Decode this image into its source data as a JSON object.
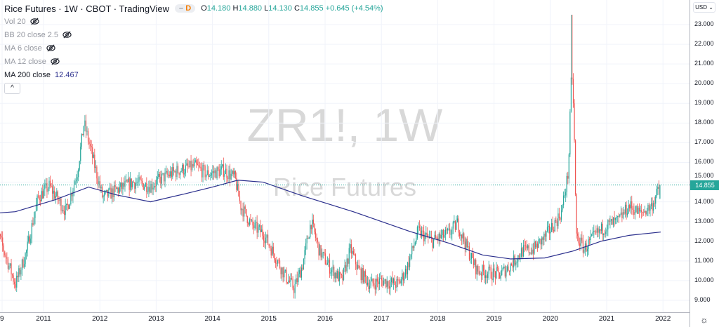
{
  "header": {
    "symbol_title": "Rice Futures · 1W · CBOT · TradingView",
    "badge_dash": "–",
    "badge": "D",
    "open_label": "O",
    "open": "14.180",
    "high_label": "H",
    "high": "14.880",
    "low_label": "L",
    "low": "14.130",
    "close_label": "C",
    "close": "14.855",
    "change": "+0.645 (+4.54%)"
  },
  "indicators": [
    {
      "label": "Vol 20",
      "hidden": true
    },
    {
      "label": "BB 20 close 2.5",
      "hidden": true
    },
    {
      "label": "MA 6 close",
      "hidden": true
    },
    {
      "label": "MA 12 close",
      "hidden": true
    },
    {
      "label": "MA 200 close",
      "value": "12.467",
      "hidden": false
    }
  ],
  "collapse_icon": "^",
  "watermark": {
    "line1": "ZR1!, 1W",
    "line2": "Rice Futures"
  },
  "currency": "USD ⌄",
  "colors": {
    "up": "#26a69a",
    "down": "#ef5350",
    "ma": "#2a2e8c",
    "grid": "#f0f3fa"
  },
  "chart_data": {
    "type": "candlestick",
    "title": "Rice Futures · 1W · CBOT",
    "ylim": [
      8.6,
      23.9
    ],
    "yticks": [
      "9.000",
      "10.000",
      "11.000",
      "12.000",
      "13.000",
      "14.000",
      "15.000",
      "16.000",
      "17.000",
      "18.000",
      "19.000",
      "20.000",
      "21.000",
      "22.000",
      "23.000"
    ],
    "xticks": [
      "9",
      "2011",
      "2012",
      "2013",
      "2014",
      "2015",
      "2016",
      "2017",
      "2018",
      "2019",
      "2020",
      "2021",
      "2022"
    ],
    "last_price": "14.855",
    "price_anchors": [
      [
        2010.1,
        13.2
      ],
      [
        2010.3,
        11.5
      ],
      [
        2010.5,
        9.8
      ],
      [
        2010.7,
        11.5
      ],
      [
        2010.9,
        14.2
      ],
      [
        2011.1,
        14.8
      ],
      [
        2011.4,
        13.5
      ],
      [
        2011.6,
        15.5
      ],
      [
        2011.72,
        18.0
      ],
      [
        2011.85,
        16.5
      ],
      [
        2012.05,
        14.2
      ],
      [
        2012.3,
        14.6
      ],
      [
        2012.6,
        15.0
      ],
      [
        2012.9,
        14.8
      ],
      [
        2013.1,
        15.2
      ],
      [
        2013.4,
        15.6
      ],
      [
        2013.7,
        15.8
      ],
      [
        2013.9,
        15.4
      ],
      [
        2014.2,
        15.6
      ],
      [
        2014.4,
        15.2
      ],
      [
        2014.5,
        13.8
      ],
      [
        2014.7,
        12.8
      ],
      [
        2014.9,
        12.4
      ],
      [
        2015.1,
        11.3
      ],
      [
        2015.3,
        10.2
      ],
      [
        2015.45,
        9.6
      ],
      [
        2015.6,
        10.8
      ],
      [
        2015.75,
        13.0
      ],
      [
        2015.9,
        11.5
      ],
      [
        2016.1,
        10.6
      ],
      [
        2016.3,
        10.0
      ],
      [
        2016.45,
        11.6
      ],
      [
        2016.6,
        10.5
      ],
      [
        2016.8,
        9.8
      ],
      [
        2017.0,
        10.0
      ],
      [
        2017.3,
        9.8
      ],
      [
        2017.45,
        10.6
      ],
      [
        2017.65,
        12.5
      ],
      [
        2017.9,
        12.0
      ],
      [
        2018.2,
        12.4
      ],
      [
        2018.35,
        12.9
      ],
      [
        2018.5,
        11.8
      ],
      [
        2018.7,
        10.5
      ],
      [
        2018.9,
        10.4
      ],
      [
        2019.1,
        10.3
      ],
      [
        2019.3,
        10.8
      ],
      [
        2019.5,
        11.5
      ],
      [
        2019.7,
        11.6
      ],
      [
        2019.9,
        12.2
      ],
      [
        2020.1,
        13.0
      ],
      [
        2020.2,
        13.5
      ],
      [
        2020.32,
        15.5
      ],
      [
        2020.38,
        21.0
      ],
      [
        2020.42,
        18.0
      ],
      [
        2020.46,
        12.3
      ],
      [
        2020.6,
        11.6
      ],
      [
        2020.8,
        12.3
      ],
      [
        2021.0,
        12.8
      ],
      [
        2021.2,
        13.0
      ],
      [
        2021.4,
        13.8
      ],
      [
        2021.6,
        13.4
      ],
      [
        2021.8,
        13.8
      ],
      [
        2021.96,
        14.855
      ]
    ],
    "spike_highs": [
      [
        2020.38,
        23.5
      ]
    ],
    "ma200": {
      "name": "MA 200 close",
      "points": [
        [
          2009.8,
          13.35
        ],
        [
          2010.5,
          13.5
        ],
        [
          2011.2,
          14.1
        ],
        [
          2011.8,
          14.75
        ],
        [
          2012.3,
          14.35
        ],
        [
          2012.9,
          14.0
        ],
        [
          2013.5,
          14.4
        ],
        [
          2014.0,
          14.75
        ],
        [
          2014.45,
          15.1
        ],
        [
          2014.9,
          15.0
        ],
        [
          2015.6,
          14.3
        ],
        [
          2016.5,
          13.5
        ],
        [
          2017.5,
          12.5
        ],
        [
          2018.2,
          11.9
        ],
        [
          2018.8,
          11.3
        ],
        [
          2019.3,
          11.1
        ],
        [
          2019.9,
          11.15
        ],
        [
          2020.4,
          11.5
        ],
        [
          2020.9,
          12.0
        ],
        [
          2021.4,
          12.3
        ],
        [
          2021.96,
          12.467
        ]
      ]
    }
  }
}
